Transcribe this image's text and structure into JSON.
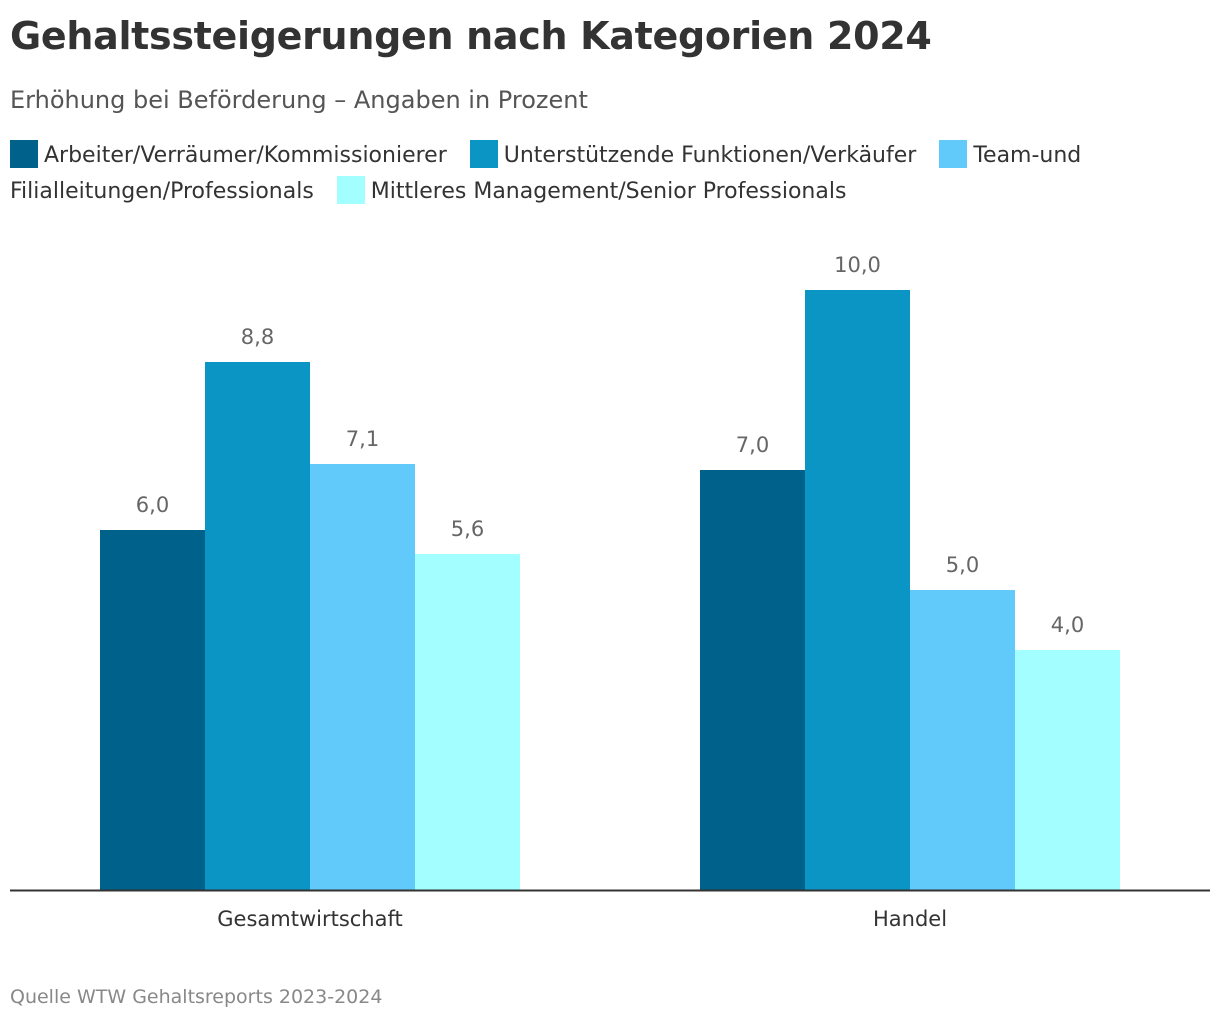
{
  "title": "Gehaltssteigerungen nach Kategorien 2024",
  "subtitle": "Erhöhung bei Beförderung – Angaben in Prozent",
  "source": "Quelle WTW Gehaltsreports 2023-2024",
  "colors": {
    "axis": "#333333",
    "label": "#666666",
    "series": [
      "#00628b",
      "#0b95c4",
      "#61cafa",
      "#a3ffff"
    ]
  },
  "chart_data": {
    "type": "bar",
    "title": "Gehaltssteigerungen nach Kategorien 2024",
    "subtitle": "Erhöhung bei Beförderung – Angaben in Prozent",
    "categories": [
      "Gesamtwirtschaft",
      "Handel"
    ],
    "series": [
      {
        "name": "Arbeiter/Verräumer/Kommissionierer",
        "values": [
          6.0,
          7.0
        ],
        "labels": [
          "6,0",
          "7,0"
        ]
      },
      {
        "name": "Unterstützende Funktionen/Verkäufer",
        "values": [
          8.8,
          10.0
        ],
        "labels": [
          "8,8",
          "10,0"
        ]
      },
      {
        "name": "Team-und Filialleitungen/Professionals",
        "values": [
          7.1,
          5.0
        ],
        "labels": [
          "7,1",
          "5,0"
        ]
      },
      {
        "name": "Mittleres Management/Senior Professionals",
        "values": [
          5.6,
          4.0
        ],
        "labels": [
          "5,6",
          "4,0"
        ]
      }
    ],
    "ylim": [
      0,
      10
    ],
    "xlabel": "",
    "ylabel": "",
    "grid": false,
    "legend": "top-left"
  }
}
